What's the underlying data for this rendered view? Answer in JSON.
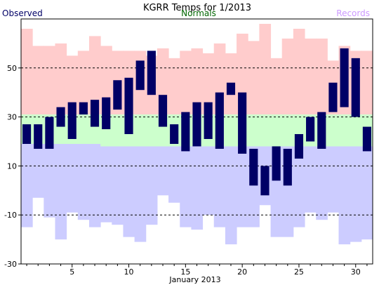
{
  "chart_data": {
    "type": "bar",
    "title": "KGRR Temps for 1/2013",
    "xlabel": "January 2013",
    "ylabel": "",
    "ylim": [
      -30,
      70
    ],
    "yticks": [
      -30,
      -10,
      10,
      30,
      50
    ],
    "xticks": [
      5,
      10,
      15,
      20,
      25,
      30
    ],
    "grid": "dashed horizontal at -10, 10, 30, 50",
    "legend": "top, one label each: left, center, right",
    "days": [
      1,
      2,
      3,
      4,
      5,
      6,
      7,
      8,
      9,
      10,
      11,
      12,
      13,
      14,
      15,
      16,
      17,
      18,
      19,
      20,
      21,
      22,
      23,
      24,
      25,
      26,
      27,
      28,
      29,
      30,
      31
    ],
    "series": [
      {
        "name": "Observed",
        "color": "#000066",
        "high": [
          27,
          27,
          30,
          34,
          36,
          36,
          37,
          38,
          45,
          46,
          53,
          57,
          39,
          27,
          32,
          36,
          36,
          40,
          44,
          40,
          17,
          10,
          18,
          17,
          23,
          30,
          32,
          44,
          58,
          54,
          26
        ],
        "low": [
          19,
          17,
          17,
          26,
          21,
          31,
          26,
          25,
          33,
          23,
          41,
          39,
          26,
          19,
          16,
          18,
          21,
          17,
          39,
          15,
          2,
          -2,
          4,
          2,
          13,
          20,
          17,
          32,
          34,
          30,
          16
        ]
      },
      {
        "name": "Normals",
        "color": "#006600",
        "fill_high": "#ccffcc",
        "fill_low": "#ccccff",
        "high": [
          31,
          31,
          31,
          31,
          31,
          31,
          31,
          31,
          31,
          31,
          31,
          31,
          31,
          31,
          31,
          31,
          31,
          31,
          31,
          31,
          31,
          31,
          31,
          31,
          31,
          31,
          31,
          31,
          31,
          31,
          31
        ],
        "low": [
          19,
          19,
          19,
          19,
          19,
          19,
          19,
          18,
          18,
          18,
          18,
          18,
          18,
          18,
          18,
          18,
          18,
          18,
          18,
          18,
          18,
          18,
          18,
          18,
          18,
          18,
          18,
          18,
          18,
          18,
          18
        ]
      },
      {
        "name": "Records",
        "color": "#cc99ff",
        "fill_high": "#ffcccc",
        "fill_low": "#ccccff",
        "high": [
          66,
          59,
          59,
          60,
          55,
          57,
          63,
          59,
          57,
          57,
          57,
          55,
          58,
          54,
          57,
          58,
          56,
          60,
          56,
          64,
          61,
          68,
          54,
          62,
          66,
          62,
          62,
          53,
          59,
          57,
          57
        ],
        "low": [
          -15,
          -3,
          -11,
          -20,
          -9,
          -12,
          -15,
          -13,
          -14,
          -19,
          -21,
          -14,
          -2,
          -5,
          -15,
          -16,
          -10,
          -15,
          -22,
          -15,
          -15,
          -6,
          -19,
          -19,
          -15,
          -9,
          -12,
          -9,
          -22,
          -21,
          -20
        ]
      }
    ]
  }
}
